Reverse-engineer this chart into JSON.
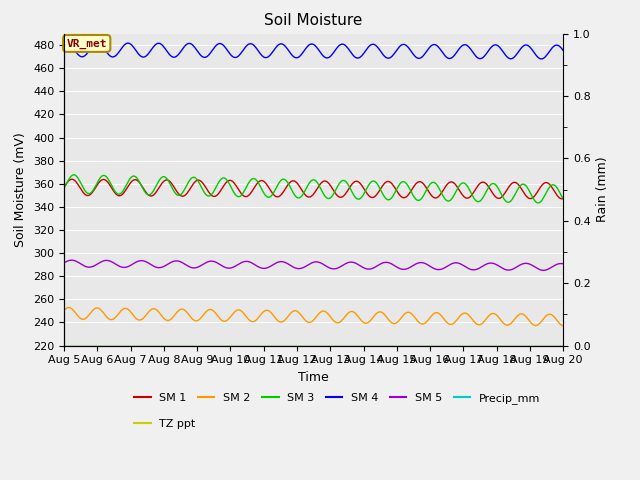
{
  "title": "Soil Moisture",
  "xlabel": "Time",
  "ylabel_left": "Soil Moisture (mV)",
  "ylabel_right": "Rain (mm)",
  "ylim_left": [
    220,
    490
  ],
  "ylim_right": [
    0.0,
    1.0
  ],
  "yticks_left": [
    220,
    240,
    260,
    280,
    300,
    320,
    340,
    360,
    380,
    400,
    420,
    440,
    460,
    480
  ],
  "yticks_right_vals": [
    0.0,
    0.2,
    0.4,
    0.6,
    0.8,
    1.0
  ],
  "yticks_right_labels": [
    "0.0",
    "0.2",
    "0.4",
    "0.6",
    "0.8",
    "1.0"
  ],
  "n_points": 500,
  "bg_color": "#e8e8e8",
  "fig_bg_color": "#f0f0f0",
  "annotation_text": "VR_met",
  "series": {
    "SM1": {
      "color": "#cc0000",
      "label": "SM 1",
      "base": 357,
      "amplitude": 7,
      "trend": -3.0,
      "period": 0.95,
      "phase": 0.0
    },
    "SM2": {
      "color": "#ff9900",
      "label": "SM 2",
      "base": 248,
      "amplitude": 5,
      "trend": -6.0,
      "period": 0.85,
      "phase": 0.5
    },
    "SM3": {
      "color": "#00cc00",
      "label": "SM 3",
      "base": 360,
      "amplitude": 8,
      "trend": -9.0,
      "period": 0.9,
      "phase": -0.5
    },
    "SM4": {
      "color": "#0000ff",
      "label": "SM 4",
      "base": 476,
      "amplitude": 6,
      "trend": -2.0,
      "period": 0.92,
      "phase": 1.0
    },
    "SM5": {
      "color": "#9900cc",
      "label": "SM 5",
      "base": 291,
      "amplitude": 3,
      "trend": -3.0,
      "period": 1.05,
      "phase": 0.2
    },
    "Precip_mm": {
      "color": "#00cccc",
      "label": "Precip_mm",
      "base": 220,
      "amplitude": 0,
      "trend": 0,
      "period": 1.0,
      "phase": 0.0
    },
    "TZ_ppt": {
      "color": "#cccc00",
      "label": "TZ ppt",
      "base": 220,
      "amplitude": 0,
      "trend": 0,
      "period": 1.0,
      "phase": 0.0
    }
  },
  "x_days": [
    5,
    6,
    7,
    8,
    9,
    10,
    11,
    12,
    13,
    14,
    15,
    16,
    17,
    18,
    19,
    20
  ],
  "tick_fontsize": 8,
  "label_fontsize": 9,
  "title_fontsize": 11
}
